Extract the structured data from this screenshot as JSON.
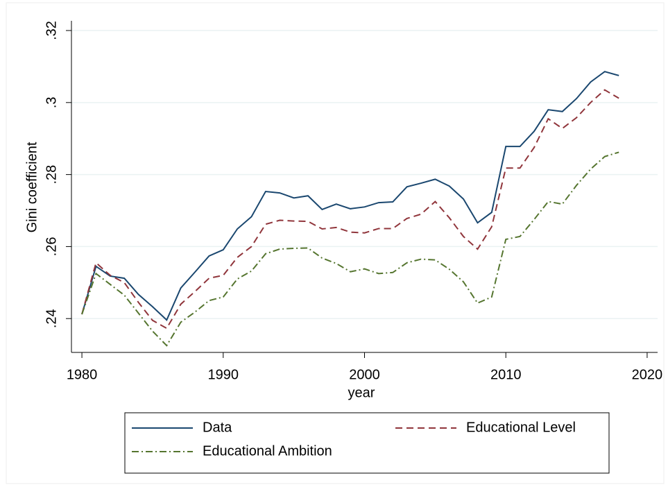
{
  "chart_data": {
    "type": "line",
    "x_label": "year",
    "y_label": "Gini coefficient",
    "x": [
      1980,
      1981,
      1982,
      1983,
      1984,
      1985,
      1986,
      1987,
      1988,
      1989,
      1990,
      1991,
      1992,
      1993,
      1994,
      1995,
      1996,
      1997,
      1998,
      1999,
      2000,
      2001,
      2002,
      2003,
      2004,
      2005,
      2006,
      2007,
      2008,
      2009,
      2010,
      2011,
      2012,
      2013,
      2014,
      2015,
      2016,
      2017,
      2018
    ],
    "series": [
      {
        "name": "Data",
        "color": "#1a476f",
        "style": "solid",
        "values": [
          0.2412,
          0.2545,
          0.2518,
          0.2512,
          0.2467,
          0.2433,
          0.2396,
          0.2485,
          0.2529,
          0.2574,
          0.2591,
          0.2649,
          0.2683,
          0.2753,
          0.2749,
          0.2735,
          0.2741,
          0.2703,
          0.2718,
          0.2705,
          0.271,
          0.2722,
          0.2724,
          0.2766,
          0.2776,
          0.2787,
          0.2768,
          0.2732,
          0.2666,
          0.2695,
          0.2878,
          0.2878,
          0.292,
          0.298,
          0.2975,
          0.3011,
          0.3057,
          0.3086,
          0.3075
        ]
      },
      {
        "name": "Educational Level",
        "color": "#90353b",
        "style": "dash",
        "values": [
          0.2412,
          0.2555,
          0.252,
          0.25,
          0.2445,
          0.2395,
          0.2373,
          0.244,
          0.2475,
          0.2512,
          0.252,
          0.257,
          0.26,
          0.2662,
          0.2673,
          0.2671,
          0.267,
          0.2649,
          0.2653,
          0.264,
          0.2638,
          0.265,
          0.265,
          0.2678,
          0.269,
          0.2725,
          0.268,
          0.2628,
          0.2593,
          0.2655,
          0.2818,
          0.2818,
          0.2875,
          0.2955,
          0.2928,
          0.2958,
          0.3,
          0.3035,
          0.3012
        ]
      },
      {
        "name": "Educational Ambition",
        "color": "#55752f",
        "style": "dashdot",
        "values": [
          0.2412,
          0.2525,
          0.2495,
          0.2465,
          0.2415,
          0.2365,
          0.2325,
          0.239,
          0.2418,
          0.245,
          0.246,
          0.251,
          0.2532,
          0.258,
          0.2593,
          0.2595,
          0.2596,
          0.2568,
          0.2553,
          0.253,
          0.2538,
          0.2525,
          0.2528,
          0.2555,
          0.2565,
          0.2563,
          0.2537,
          0.2502,
          0.2443,
          0.246,
          0.262,
          0.2628,
          0.2675,
          0.2725,
          0.2718,
          0.277,
          0.2815,
          0.285,
          0.2862
        ]
      }
    ],
    "xlim": [
      1979.26,
      2020.74
    ],
    "xticks": [
      1980,
      1990,
      2000,
      2010,
      2020
    ],
    "ylim": [
      0.2306,
      0.3227
    ],
    "yticks": [
      {
        "value": 0.24,
        "label": ".24"
      },
      {
        "value": 0.26,
        "label": ".26"
      },
      {
        "value": 0.28,
        "label": ".28"
      },
      {
        "value": 0.3,
        "label": ".3"
      },
      {
        "value": 0.32,
        "label": ".32"
      }
    ],
    "grid": true
  }
}
